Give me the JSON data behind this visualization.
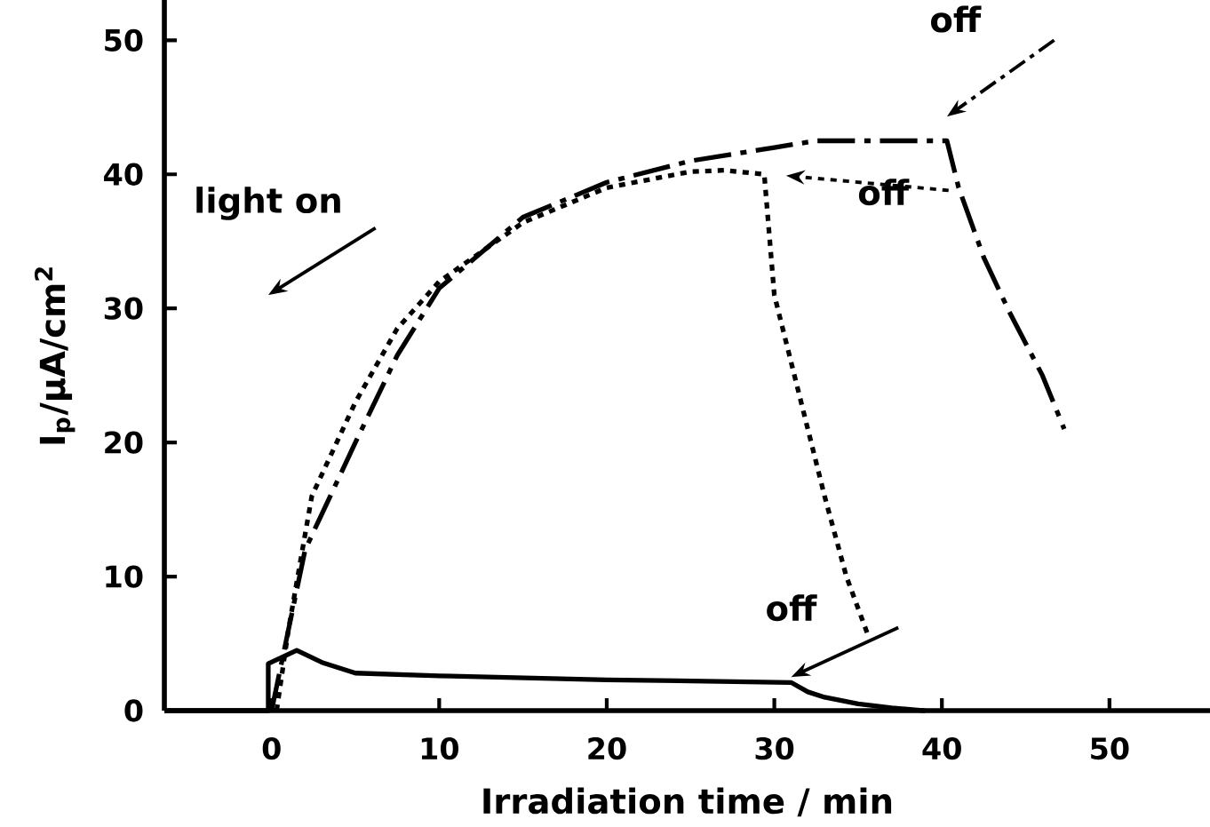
{
  "chart_data": {
    "type": "line",
    "xlabel": "Irradiation time / min",
    "ylabel": "I$_{p}$/μA/cm$^{2}$",
    "xlim": [
      -6.4,
      56
    ],
    "ylim": [
      0,
      53
    ],
    "xticks": [
      0,
      10,
      20,
      30,
      40,
      50
    ],
    "yticks": [
      0,
      10,
      20,
      30,
      40,
      50
    ],
    "grid": false,
    "marker": "none",
    "series": [
      {
        "color": "#000000",
        "line_style": "solid",
        "x": [
          -6.4,
          -0.2,
          -0.2,
          1.5,
          3,
          5,
          10,
          20,
          31,
          32,
          33,
          35,
          37,
          39
        ],
        "values": [
          0,
          0,
          3.5,
          4.5,
          3.6,
          2.8,
          2.6,
          2.3,
          2.1,
          1.4,
          1.0,
          0.5,
          0.2,
          0
        ]
      },
      {
        "color": "#000000",
        "line_style": "dotted",
        "x": [
          0.3,
          1,
          2.4,
          5,
          7.5,
          10,
          15,
          20,
          25,
          27,
          29.4,
          30,
          31.6,
          33,
          34.3,
          35.6
        ],
        "values": [
          0,
          6,
          16,
          23,
          28.5,
          32,
          36.4,
          39,
          40.2,
          40.3,
          40,
          31,
          23,
          16,
          10,
          5.6
        ]
      },
      {
        "color": "#000000",
        "line_style": "dashed",
        "x": [
          0,
          2,
          5,
          7.5,
          10,
          15,
          20,
          25,
          30,
          32.5,
          40.3,
          41,
          42.5,
          44,
          46,
          47.3
        ],
        "values": [
          0,
          12,
          20,
          26.5,
          31.5,
          36.8,
          39.4,
          41,
          42,
          42.5,
          42.5,
          39,
          33.8,
          29.8,
          25,
          21
        ]
      }
    ],
    "annotations": [
      "light on",
      "off",
      "off",
      "off"
    ]
  }
}
